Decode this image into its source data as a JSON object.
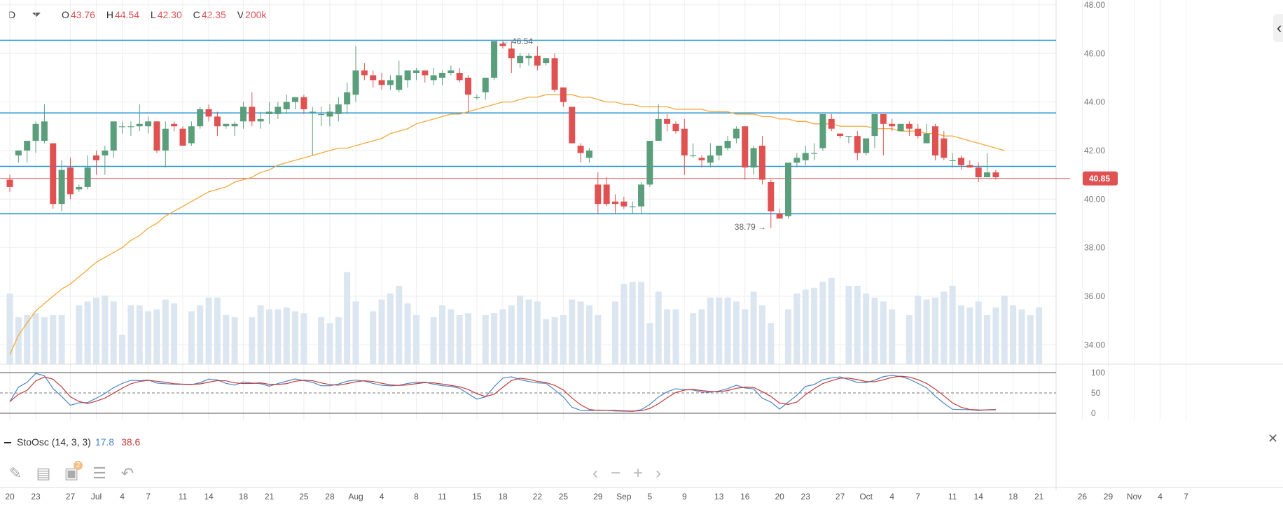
{
  "header": {
    "timeframe": "D",
    "open_label": "O",
    "open": "43.76",
    "high_label": "H",
    "high": "44.54",
    "low_label": "L",
    "low": "42.30",
    "close_label": "C",
    "close": "42.35",
    "volume_label": "V",
    "volume": "200k"
  },
  "colors": {
    "up": "#5a9e7c",
    "down": "#e05252",
    "level_line": "#1e90d6",
    "price_line": "#e05252",
    "ma": "#f2a93b",
    "volume": "#dbe6f0",
    "stoch_k": "#4a86c8",
    "stoch_d": "#c43b3b",
    "grid": "#eeeeee"
  },
  "indicator": {
    "name": "StoOsc (14, 3, 3)",
    "k_value": "17.8",
    "d_value": "38.6"
  },
  "toolbar": [
    "pencil-icon",
    "list-icon",
    "layers-icon",
    "settings-sliders-icon",
    "undo-icon"
  ],
  "toolbar_badge": "2",
  "zoom_controls": [
    "‹",
    "−",
    "+",
    "›"
  ],
  "chart_data": {
    "type": "candlestick",
    "y_axis": {
      "ticks": [
        "48.00",
        "46.00",
        "44.00",
        "42.00",
        "40.00",
        "38.00",
        "36.00",
        "34.00"
      ],
      "range": [
        33.2,
        48.2
      ]
    },
    "stoch_axis": {
      "ticks": [
        "100",
        "50",
        "0"
      ],
      "range": [
        0,
        100
      ]
    },
    "x_axis": {
      "ticks": [
        "20",
        "23",
        "27",
        "Jul",
        "4",
        "7",
        "11",
        "14",
        "18",
        "21",
        "25",
        "28",
        "Aug",
        "4",
        "8",
        "11",
        "15",
        "18",
        "22",
        "25",
        "29",
        "Sep",
        "5",
        "9",
        "13",
        "16",
        "20",
        "23",
        "27",
        "Oct",
        "4",
        "7",
        "11",
        "14",
        "18",
        "21",
        "26",
        "29",
        "Nov",
        "4",
        "7"
      ],
      "index": [
        0,
        3,
        7,
        10,
        13,
        16,
        20,
        23,
        27,
        30,
        34,
        37,
        40,
        43,
        47,
        50,
        54,
        57,
        61,
        64,
        68,
        71,
        74,
        78,
        82,
        85,
        89,
        92,
        96,
        99,
        102,
        105,
        109,
        112,
        116,
        119,
        124,
        127,
        130,
        133,
        136
      ]
    },
    "horizontal_lines": [
      46.54,
      43.55,
      41.35,
      39.4
    ],
    "last_price": "40.85",
    "annotations": {
      "high": "46.54",
      "low": "38.79"
    },
    "grid": true,
    "ohlc": [
      [
        40.8,
        41.0,
        40.3,
        40.5
      ],
      [
        41.8,
        42.0,
        41.5,
        42.0
      ],
      [
        42.0,
        42.4,
        41.5,
        42.4
      ],
      [
        42.4,
        43.2,
        41.9,
        43.1
      ],
      [
        42.4,
        43.9,
        42.3,
        43.2
      ],
      [
        42.3,
        42.3,
        39.6,
        39.8
      ],
      [
        39.8,
        41.6,
        39.5,
        41.2
      ],
      [
        41.3,
        41.7,
        40.0,
        40.2
      ],
      [
        40.4,
        40.6,
        40.3,
        40.5
      ],
      [
        40.5,
        41.8,
        40.4,
        41.3
      ],
      [
        41.8,
        42.0,
        41.0,
        41.6
      ],
      [
        41.8,
        42.2,
        41.0,
        42.0
      ],
      [
        42.0,
        43.1,
        41.7,
        43.2
      ],
      [
        43.0,
        43.2,
        42.7,
        43.0
      ],
      [
        43.0,
        43.2,
        42.6,
        43.0
      ],
      [
        43.0,
        43.9,
        42.8,
        43.1
      ],
      [
        43.0,
        43.4,
        42.7,
        43.2
      ],
      [
        43.2,
        43.2,
        41.9,
        42.0
      ],
      [
        42.0,
        43.2,
        41.3,
        42.9
      ],
      [
        43.1,
        43.2,
        42.8,
        43.0
      ],
      [
        42.9,
        43.0,
        42.3,
        42.2
      ],
      [
        42.3,
        43.2,
        42.2,
        43.0
      ],
      [
        43.0,
        43.8,
        42.9,
        43.7
      ],
      [
        43.7,
        43.9,
        43.2,
        43.4
      ],
      [
        43.4,
        43.6,
        42.6,
        43.0
      ],
      [
        43.0,
        43.1,
        42.9,
        43.1
      ],
      [
        43.0,
        43.2,
        42.6,
        43.1
      ],
      [
        43.2,
        44.0,
        42.9,
        43.8
      ],
      [
        43.8,
        44.4,
        43.0,
        43.2
      ],
      [
        43.2,
        43.6,
        42.9,
        43.3
      ],
      [
        43.5,
        44.0,
        43.1,
        43.6
      ],
      [
        43.5,
        44.0,
        43.3,
        43.8
      ],
      [
        43.7,
        44.3,
        43.5,
        44.0
      ],
      [
        44.0,
        44.2,
        43.7,
        44.2
      ],
      [
        44.2,
        44.3,
        43.5,
        43.7
      ],
      [
        43.6,
        43.8,
        41.8,
        43.6
      ],
      [
        43.5,
        43.8,
        43.0,
        43.5
      ],
      [
        43.4,
        43.9,
        43.0,
        43.6
      ],
      [
        43.5,
        44.2,
        43.2,
        43.9
      ],
      [
        43.9,
        44.8,
        43.5,
        44.4
      ],
      [
        44.3,
        46.3,
        44.0,
        45.3
      ],
      [
        45.3,
        45.6,
        44.9,
        45.1
      ],
      [
        45.1,
        45.3,
        44.6,
        44.9
      ],
      [
        44.9,
        45.2,
        44.5,
        44.7
      ],
      [
        44.7,
        45.1,
        44.5,
        44.9
      ],
      [
        44.5,
        45.7,
        44.4,
        45.1
      ],
      [
        44.9,
        45.3,
        44.6,
        45.3
      ],
      [
        45.2,
        45.4,
        44.9,
        45.3
      ],
      [
        45.3,
        45.3,
        44.8,
        45.1
      ],
      [
        44.9,
        45.4,
        44.7,
        45.1
      ],
      [
        45.0,
        45.3,
        44.7,
        45.2
      ],
      [
        45.2,
        45.5,
        45.1,
        45.3
      ],
      [
        45.2,
        45.4,
        44.8,
        44.9
      ],
      [
        45.0,
        45.1,
        43.6,
        44.3
      ],
      [
        44.2,
        44.3,
        44.1,
        44.2
      ],
      [
        44.4,
        45.0,
        44.1,
        45.0
      ],
      [
        45.0,
        46.5,
        44.9,
        46.5
      ],
      [
        46.4,
        46.5,
        46.2,
        46.3
      ],
      [
        46.2,
        46.5,
        45.2,
        45.8
      ],
      [
        45.6,
        46.0,
        45.4,
        45.9
      ],
      [
        45.8,
        46.0,
        45.5,
        45.9
      ],
      [
        45.9,
        46.3,
        45.3,
        45.5
      ],
      [
        45.6,
        45.7,
        45.5,
        45.8
      ],
      [
        45.8,
        46.0,
        44.4,
        44.5
      ],
      [
        44.6,
        44.6,
        43.8,
        44.0
      ],
      [
        43.8,
        43.8,
        42.3,
        42.3
      ],
      [
        42.2,
        42.3,
        41.5,
        41.9
      ],
      [
        41.7,
        42.1,
        41.5,
        42.0
      ],
      [
        40.6,
        41.1,
        39.4,
        39.8
      ],
      [
        40.6,
        40.9,
        39.7,
        39.8
      ],
      [
        39.9,
        40.2,
        39.4,
        39.8
      ],
      [
        39.9,
        40.1,
        39.6,
        39.7
      ],
      [
        39.7,
        39.9,
        39.4,
        39.7
      ],
      [
        39.7,
        40.7,
        39.4,
        40.6
      ],
      [
        40.6,
        42.4,
        40.5,
        42.4
      ],
      [
        42.4,
        43.9,
        42.4,
        43.3
      ],
      [
        43.3,
        43.5,
        42.8,
        43.1
      ],
      [
        43.1,
        43.2,
        42.7,
        42.8
      ],
      [
        42.9,
        43.3,
        41.0,
        41.8
      ],
      [
        41.8,
        42.3,
        41.7,
        41.8
      ],
      [
        41.7,
        41.8,
        41.3,
        41.6
      ],
      [
        41.5,
        42.3,
        41.3,
        41.8
      ],
      [
        41.8,
        42.2,
        41.6,
        42.2
      ],
      [
        42.1,
        42.6,
        42.0,
        42.4
      ],
      [
        42.5,
        43.0,
        42.3,
        42.9
      ],
      [
        43.0,
        43.0,
        40.8,
        41.3
      ],
      [
        41.3,
        42.2,
        41.0,
        42.1
      ],
      [
        42.2,
        42.6,
        40.6,
        40.8
      ],
      [
        40.7,
        40.8,
        38.8,
        39.5
      ],
      [
        39.4,
        39.6,
        39.2,
        39.2
      ],
      [
        39.3,
        41.5,
        39.2,
        41.5
      ],
      [
        41.5,
        41.9,
        41.3,
        41.7
      ],
      [
        41.6,
        42.2,
        41.4,
        41.9
      ],
      [
        41.9,
        42.3,
        41.6,
        41.9
      ],
      [
        42.1,
        43.5,
        42.0,
        43.5
      ],
      [
        43.3,
        43.5,
        42.8,
        42.9
      ],
      [
        42.7,
        42.7,
        42.5,
        42.6
      ],
      [
        42.6,
        42.6,
        42.3,
        42.6
      ],
      [
        42.6,
        42.8,
        41.6,
        41.9
      ],
      [
        41.9,
        42.5,
        41.8,
        42.5
      ],
      [
        42.6,
        43.5,
        42.1,
        43.5
      ],
      [
        43.5,
        43.5,
        41.8,
        43.1
      ],
      [
        43.1,
        43.3,
        42.8,
        43.0
      ],
      [
        42.8,
        43.1,
        42.8,
        43.1
      ],
      [
        43.1,
        43.2,
        42.6,
        42.9
      ],
      [
        42.9,
        43.1,
        42.5,
        42.6
      ],
      [
        42.3,
        43.1,
        42.3,
        42.7
      ],
      [
        43.0,
        43.1,
        41.6,
        41.8
      ],
      [
        42.5,
        42.8,
        41.6,
        41.7
      ],
      [
        41.6,
        41.9,
        41.3,
        41.6
      ],
      [
        41.7,
        41.8,
        41.2,
        41.4
      ],
      [
        41.4,
        41.6,
        41.3,
        41.3
      ],
      [
        41.3,
        41.5,
        40.7,
        40.9
      ],
      [
        40.9,
        41.9,
        40.9,
        41.1
      ],
      [
        41.1,
        41.2,
        40.8,
        40.9
      ]
    ],
    "ma": [
      33.6,
      34.4,
      34.9,
      35.4,
      35.7,
      36.0,
      36.3,
      36.5,
      36.8,
      37.1,
      37.4,
      37.6,
      37.8,
      38.0,
      38.3,
      38.5,
      38.8,
      39.0,
      39.3,
      39.5,
      39.7,
      39.9,
      40.1,
      40.3,
      40.4,
      40.5,
      40.7,
      40.8,
      40.9,
      41.1,
      41.2,
      41.4,
      41.5,
      41.6,
      41.7,
      41.8,
      41.9,
      42.0,
      42.1,
      42.1,
      42.2,
      42.3,
      42.4,
      42.5,
      42.7,
      42.8,
      42.9,
      43.1,
      43.2,
      43.3,
      43.4,
      43.5,
      43.5,
      43.6,
      43.7,
      43.8,
      43.9,
      44.0,
      44.0,
      44.1,
      44.2,
      44.2,
      44.3,
      44.3,
      44.3,
      44.3,
      44.2,
      44.2,
      44.1,
      44.0,
      44.0,
      43.9,
      43.9,
      43.8,
      43.8,
      43.8,
      43.8,
      43.7,
      43.7,
      43.7,
      43.7,
      43.6,
      43.6,
      43.6,
      43.5,
      43.5,
      43.5,
      43.4,
      43.4,
      43.3,
      43.3,
      43.2,
      43.2,
      43.1,
      43.1,
      43.1,
      43.0,
      43.0,
      43.0,
      43.0,
      42.9,
      42.9,
      42.9,
      42.8,
      42.8,
      42.8,
      42.7,
      42.7,
      42.6,
      42.6,
      42.5,
      42.4,
      42.3,
      42.2,
      42.1,
      42.0
    ],
    "volume": [
      36,
      24,
      25,
      26,
      24,
      25,
      25,
      0,
      30,
      32,
      34,
      35,
      32,
      15,
      30,
      30,
      27,
      28,
      33,
      31,
      0,
      27,
      30,
      34,
      34,
      25,
      24,
      0,
      24,
      30,
      28,
      28,
      29,
      27,
      26,
      0,
      24,
      21,
      24,
      47,
      32,
      0,
      27,
      33,
      36,
      40,
      31,
      25,
      0,
      24,
      30,
      28,
      25,
      26,
      0,
      25,
      26,
      28,
      30,
      35,
      33,
      32,
      23,
      24,
      25,
      33,
      32,
      30,
      25,
      0,
      32,
      41,
      42,
      42,
      21,
      37,
      28,
      28,
      0,
      26,
      28,
      34,
      34,
      34,
      32,
      28,
      37,
      30,
      21,
      0,
      28,
      36,
      38,
      39,
      42,
      44,
      0,
      40,
      40,
      36,
      34,
      32,
      28,
      0,
      25,
      35,
      33,
      34,
      37,
      40,
      30,
      29,
      32,
      25,
      29,
      35,
      30,
      28,
      25,
      29
    ]
  }
}
